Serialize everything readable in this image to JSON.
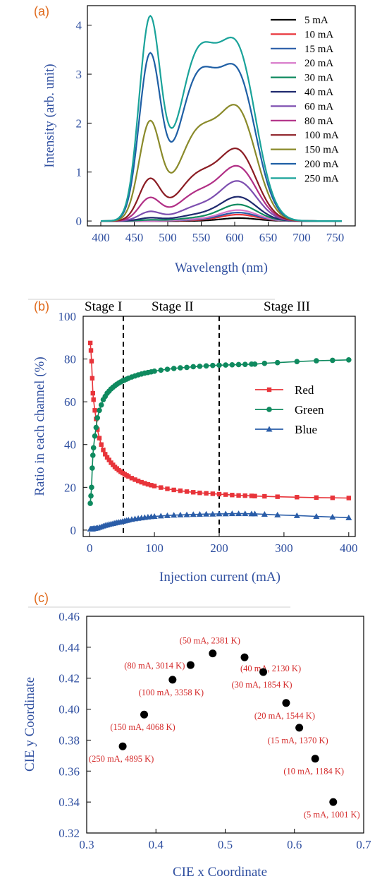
{
  "chart_data": [
    {
      "panel": "(a)",
      "type": "line",
      "xlabel": "Wavelength (nm)",
      "ylabel": "Intensity (arb. unit)",
      "xlim": [
        380,
        780
      ],
      "ylim": [
        -0.1,
        4.4
      ],
      "xticks": [
        400,
        450,
        500,
        550,
        600,
        650,
        700,
        750
      ],
      "yticks": [
        0,
        1,
        2,
        3,
        4
      ],
      "legend_position": "top-right",
      "series": [
        {
          "name": "5 mA",
          "color": "#000000",
          "peaks": {
            "blue": 0.0,
            "green": 0.0,
            "red": 0.06
          }
        },
        {
          "name": "10 mA",
          "color": "#e8343a",
          "peaks": {
            "blue": 0.0,
            "green": 0.01,
            "red": 0.13
          }
        },
        {
          "name": "15 mA",
          "color": "#2a5da8",
          "peaks": {
            "blue": 0.0,
            "green": 0.02,
            "red": 0.17
          }
        },
        {
          "name": "20 mA",
          "color": "#d775c8",
          "peaks": {
            "blue": 0.0,
            "green": 0.03,
            "red": 0.22
          }
        },
        {
          "name": "30 mA",
          "color": "#0f8a5f",
          "peaks": {
            "blue": 0.02,
            "green": 0.06,
            "red": 0.33
          }
        },
        {
          "name": "40 mA",
          "color": "#1f2a6e",
          "peaks": {
            "blue": 0.06,
            "green": 0.12,
            "red": 0.48
          }
        },
        {
          "name": "60 mA",
          "color": "#7d4fb0",
          "peaks": {
            "blue": 0.18,
            "green": 0.28,
            "red": 0.78
          }
        },
        {
          "name": "80 mA",
          "color": "#b12f86",
          "peaks": {
            "blue": 0.45,
            "green": 0.55,
            "red": 1.05
          }
        },
        {
          "name": "100 mA",
          "color": "#8b1c23",
          "peaks": {
            "blue": 0.82,
            "green": 0.9,
            "red": 1.35
          }
        },
        {
          "name": "150 mA",
          "color": "#8a8a2a",
          "peaks": {
            "blue": 1.95,
            "green": 1.75,
            "red": 2.1
          }
        },
        {
          "name": "200 mA",
          "color": "#1f5fa5",
          "peaks": {
            "blue": 3.27,
            "green": 2.85,
            "red": 2.72
          }
        },
        {
          "name": "250 mA",
          "color": "#1aa39a",
          "peaks": {
            "blue": 4.0,
            "green": 3.3,
            "red": 3.18
          }
        }
      ]
    },
    {
      "panel": "(b)",
      "type": "line",
      "xlabel": "Injection current (mA)",
      "ylabel": "Ratio in each channel (%)",
      "xlim": [
        -10,
        410
      ],
      "ylim": [
        -3,
        100
      ],
      "xticks": [
        0,
        100,
        200,
        300,
        400
      ],
      "yticks": [
        0,
        20,
        40,
        60,
        80,
        100
      ],
      "stage_lines_x": [
        52,
        200
      ],
      "stages": [
        "Stage I",
        "Stage II",
        "Stage III"
      ],
      "legend_position": "right",
      "x": [
        1,
        2,
        3,
        4,
        5,
        6,
        8,
        10,
        12,
        15,
        18,
        21,
        24,
        27,
        30,
        33,
        36,
        39,
        42,
        45,
        48,
        51,
        54,
        57,
        60,
        65,
        70,
        75,
        80,
        85,
        90,
        95,
        100,
        110,
        120,
        130,
        140,
        150,
        160,
        170,
        180,
        190,
        200,
        210,
        220,
        230,
        240,
        250,
        255,
        270,
        290,
        320,
        350,
        375,
        400
      ],
      "series": [
        {
          "name": "Red",
          "color": "#e8343a",
          "marker": "square",
          "values": [
            87.5,
            84,
            79,
            71,
            64,
            61,
            56,
            52,
            47,
            43,
            40,
            37.5,
            35.5,
            34,
            32.8,
            31.5,
            30.5,
            29.5,
            28.8,
            28,
            27.3,
            26.7,
            26.1,
            25.6,
            25.1,
            24.3,
            23.6,
            23,
            22.4,
            21.9,
            21.4,
            21,
            20.6,
            19.9,
            19.3,
            18.8,
            18.4,
            18,
            17.7,
            17.4,
            17.2,
            17,
            16.8,
            16.6,
            16.4,
            16.2,
            16.1,
            16,
            15.9,
            15.8,
            15.6,
            15.4,
            15.2,
            15.1,
            15
          ]
        },
        {
          "name": "Green",
          "color": "#0f8a5f",
          "marker": "circle",
          "values": [
            12.5,
            16,
            20,
            29,
            35,
            38.5,
            44,
            48,
            52.5,
            56,
            58.5,
            61,
            62.5,
            64,
            65,
            66,
            66.8,
            67.5,
            68.2,
            68.8,
            69.3,
            69.8,
            70.2,
            70.6,
            71,
            71.6,
            72.1,
            72.6,
            73,
            73.4,
            73.7,
            74,
            74.3,
            74.8,
            75.2,
            75.6,
            75.9,
            76.1,
            76.4,
            76.6,
            76.8,
            77,
            77.1,
            77.2,
            77.3,
            77.4,
            77.5,
            77.6,
            77.6,
            78,
            78.3,
            78.8,
            79.2,
            79.4,
            79.6
          ]
        },
        {
          "name": "Blue",
          "color": "#2a5da8",
          "marker": "triangle",
          "values": [
            0.5,
            0.5,
            0.5,
            0.5,
            0.6,
            0.7,
            0.8,
            0.9,
            1,
            1.3,
            1.6,
            1.9,
            2.2,
            2.4,
            2.7,
            2.9,
            3.1,
            3.3,
            3.5,
            3.7,
            3.9,
            4.1,
            4.3,
            4.5,
            4.7,
            5,
            5.3,
            5.5,
            5.7,
            5.9,
            6.1,
            6.3,
            6.4,
            6.6,
            6.8,
            7,
            7.1,
            7.2,
            7.3,
            7.4,
            7.5,
            7.5,
            7.6,
            7.6,
            7.7,
            7.7,
            7.7,
            7.6,
            7.6,
            7.4,
            7.1,
            6.8,
            6.4,
            6.1,
            5.8
          ]
        }
      ]
    },
    {
      "panel": "(c)",
      "type": "scatter",
      "xlabel": "CIE x Coordinate",
      "ylabel": "CIE y Coordinate",
      "xlim": [
        0.3,
        0.7
      ],
      "ylim": [
        0.32,
        0.46
      ],
      "xticks": [
        "0.3",
        "0.4",
        "0.5",
        "0.6",
        "0.7"
      ],
      "yticks": [
        "0.32",
        "0.34",
        "0.36",
        "0.38",
        "0.40",
        "0.42",
        "0.44",
        "0.46"
      ],
      "points": [
        {
          "x": 0.352,
          "y": 0.376,
          "label": "(250 mA, 4895 K)",
          "anchor": "below"
        },
        {
          "x": 0.383,
          "y": 0.3965,
          "label": "(150 mA, 4068 K)",
          "anchor": "below"
        },
        {
          "x": 0.424,
          "y": 0.419,
          "label": "(100 mA, 3358 K)",
          "anchor": "below"
        },
        {
          "x": 0.45,
          "y": 0.4285,
          "label": "(80 mA, 3014 K)",
          "anchor": "left"
        },
        {
          "x": 0.482,
          "y": 0.436,
          "label": "(50 mA, 2381 K)",
          "anchor": "above"
        },
        {
          "x": 0.528,
          "y": 0.4335,
          "label": "(40 mA, 2130 K)",
          "anchor": "right"
        },
        {
          "x": 0.555,
          "y": 0.424,
          "label": "(30 mA, 1854 K)",
          "anchor": "below"
        },
        {
          "x": 0.588,
          "y": 0.404,
          "label": "(20 mA, 1544 K)",
          "anchor": "below"
        },
        {
          "x": 0.607,
          "y": 0.388,
          "label": "(15 mA, 1370 K)",
          "anchor": "below"
        },
        {
          "x": 0.63,
          "y": 0.368,
          "label": "(10 mA, 1184 K)",
          "anchor": "below"
        },
        {
          "x": 0.656,
          "y": 0.34,
          "label": "(5 mA, 1001 K)",
          "anchor": "below"
        }
      ]
    }
  ]
}
